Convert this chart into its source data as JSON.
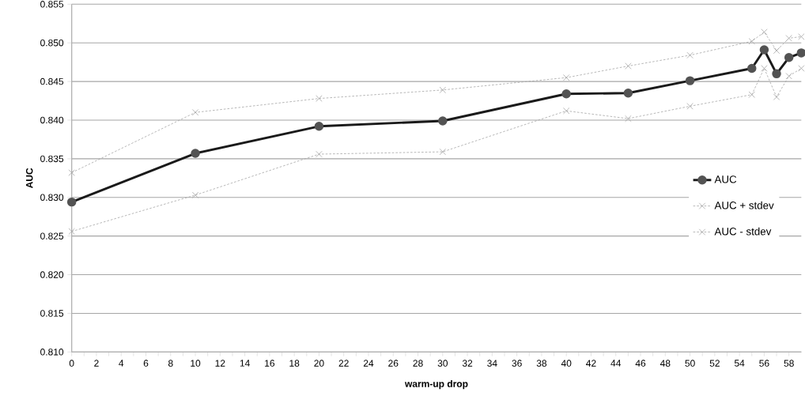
{
  "chart_data": {
    "type": "line",
    "xlabel": "warm-up drop",
    "ylabel": "AUC",
    "xlim": [
      0,
      59
    ],
    "xticks": [
      0,
      2,
      4,
      6,
      8,
      10,
      12,
      14,
      16,
      18,
      20,
      22,
      24,
      26,
      28,
      30,
      32,
      34,
      36,
      38,
      40,
      42,
      44,
      46,
      48,
      50,
      52,
      54,
      56,
      58
    ],
    "ylim": [
      0.81,
      0.855
    ],
    "yticks": [
      {
        "value": 0.81,
        "label": "0.810"
      },
      {
        "value": 0.815,
        "label": "0.815"
      },
      {
        "value": 0.82,
        "label": "0.820"
      },
      {
        "value": 0.825,
        "label": "0.825"
      },
      {
        "value": 0.83,
        "label": "0.830"
      },
      {
        "value": 0.835,
        "label": "0.835"
      },
      {
        "value": 0.84,
        "label": "0.840"
      },
      {
        "value": 0.845,
        "label": "0.845"
      },
      {
        "value": 0.85,
        "label": "0.850"
      },
      {
        "value": 0.855,
        "label": "0.855"
      }
    ],
    "x": [
      0,
      10,
      20,
      30,
      40,
      45,
      50,
      55,
      56,
      57,
      58,
      59
    ],
    "grid": "y",
    "legend": "right",
    "series": [
      {
        "name": "AUC",
        "color": "#1a1a1a",
        "marker": "circle",
        "line_style": "solid",
        "values": [
          0.8294,
          0.8357,
          0.8392,
          0.8399,
          0.8434,
          0.8435,
          0.8451,
          0.8467,
          0.8491,
          0.846,
          0.8481,
          0.8487
        ]
      },
      {
        "name": "AUC + stdev",
        "color": "#a6a6a6",
        "marker": "cross",
        "line_style": "dashed",
        "values": [
          0.8332,
          0.841,
          0.8428,
          0.8439,
          0.8455,
          0.847,
          0.8484,
          0.8502,
          0.8514,
          0.849,
          0.8506,
          0.8508
        ]
      },
      {
        "name": "AUC - stdev",
        "color": "#a6a6a6",
        "marker": "cross",
        "line_style": "dashed",
        "values": [
          0.8256,
          0.8303,
          0.8356,
          0.8359,
          0.8412,
          0.8402,
          0.8418,
          0.8433,
          0.8467,
          0.843,
          0.8457,
          0.8467
        ]
      }
    ]
  }
}
